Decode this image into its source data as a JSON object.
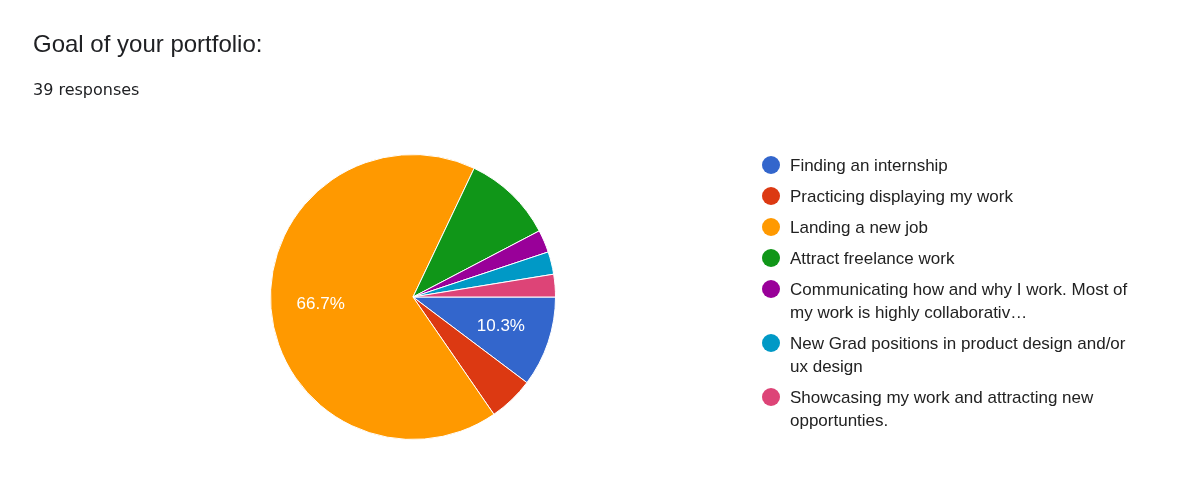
{
  "chart_data": {
    "type": "pie",
    "title": "Goal of your portfolio:",
    "subtitle": "39 responses",
    "categories": [
      "Finding an internship",
      "Practicing displaying my work",
      "Landing a new job",
      "Attract freelance work",
      "Communicating how and why I work. Most of my work is highly collaborativ…",
      "New Grad positions in product design and/or ux design",
      "Showcasing my work and attracting new opportunties."
    ],
    "values": [
      10.26,
      5.13,
      66.67,
      10.26,
      2.56,
      2.56,
      2.56
    ],
    "colors": [
      "#3366cc",
      "#dc3912",
      "#ff9900",
      "#109618",
      "#990099",
      "#0099c6",
      "#dd4477"
    ],
    "value_labels": [
      "10.3%",
      null,
      "66.7%",
      null,
      null,
      null,
      null
    ],
    "legend": "right"
  }
}
